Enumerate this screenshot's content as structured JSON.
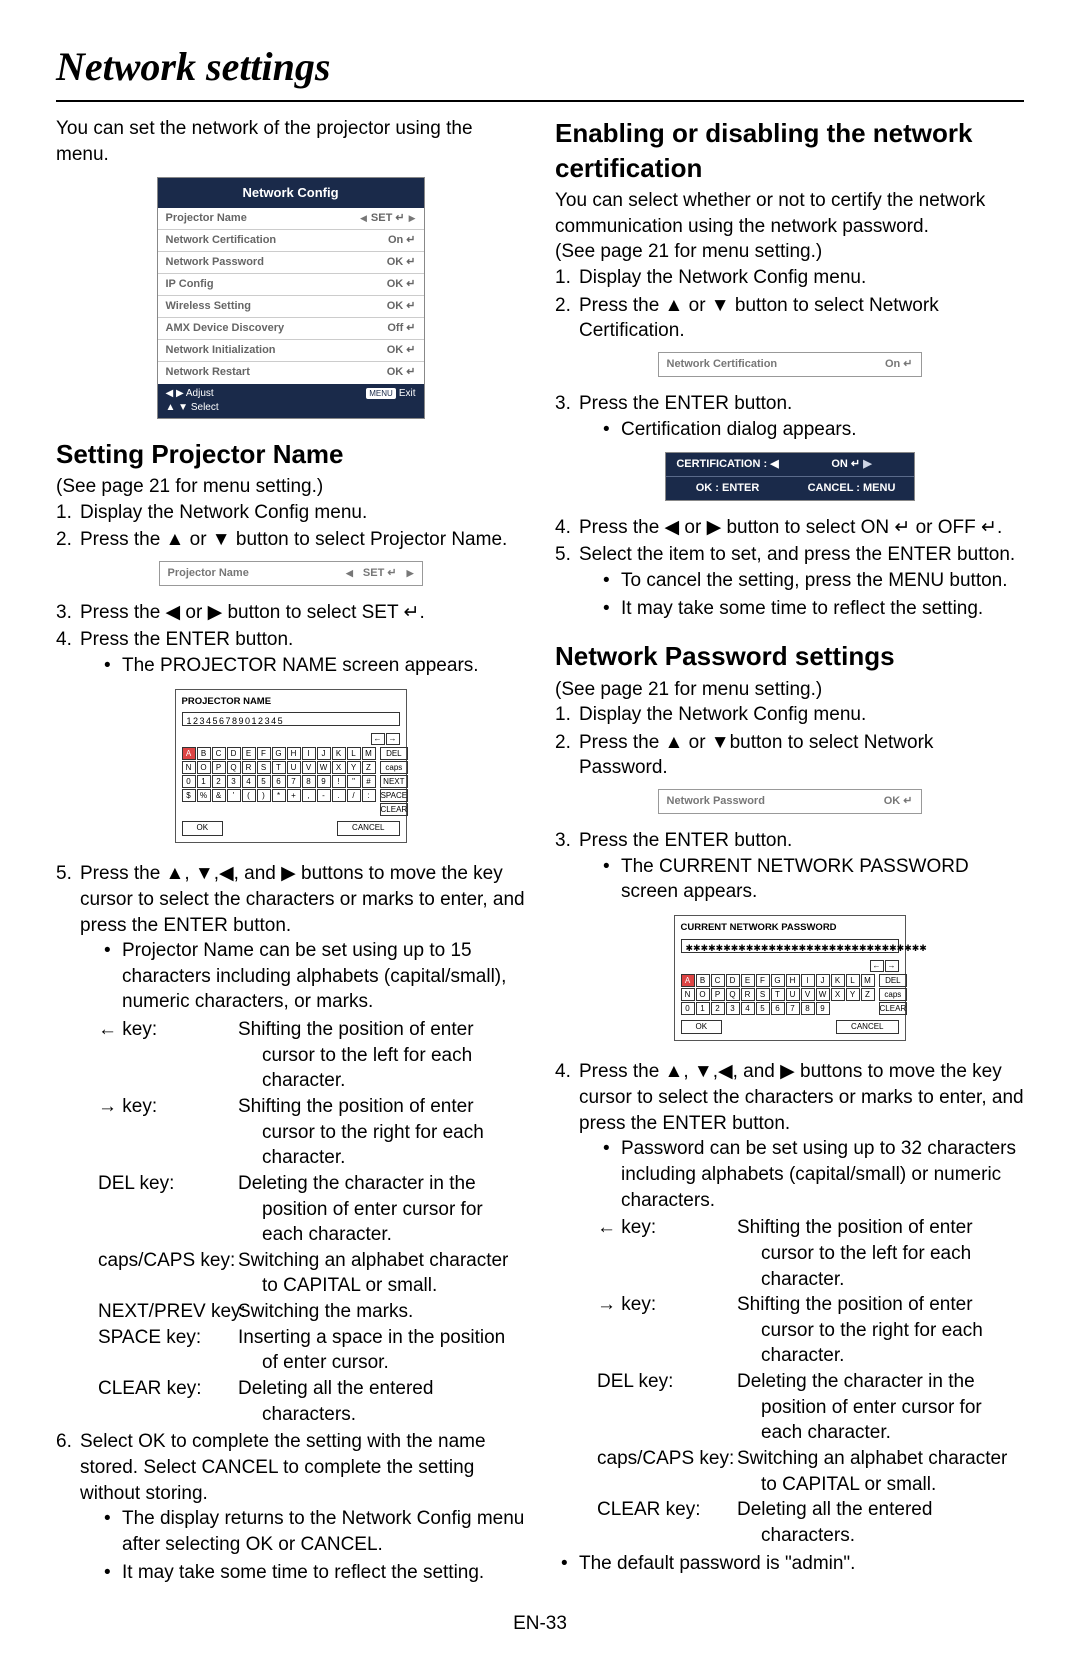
{
  "page_title": "Network settings",
  "page_number": "EN-33",
  "intro": "You can set the network of the projector using the menu.",
  "nc_panel": {
    "header": "Network Config",
    "rows": [
      {
        "label": "Projector Name",
        "value": "SET ↵",
        "has_arrows": true
      },
      {
        "label": "Network Certification",
        "value": "On ↵"
      },
      {
        "label": "Network Password",
        "value": "OK ↵"
      },
      {
        "label": "IP Config",
        "value": "OK ↵"
      },
      {
        "label": "Wireless Setting",
        "value": "OK ↵"
      },
      {
        "label": "AMX Device Discovery",
        "value": "Off ↵"
      },
      {
        "label": "Network Initialization",
        "value": "OK ↵"
      },
      {
        "label": "Network Restart",
        "value": "OK ↵"
      }
    ],
    "footer_left1": "◀ ▶ Adjust",
    "footer_left2": "▲ ▼ Select",
    "footer_right": "Exit",
    "footer_menu": "MENU"
  },
  "left": {
    "h1": "Setting Projector Name",
    "see": "(See page 21 for menu setting.)",
    "s1": "Display the Network Config menu.",
    "s2": "Press the ▲ or ▼ button to select Projector Name.",
    "mini": {
      "label": "Projector Name",
      "value": "SET ↵"
    },
    "s3": "Press the ◀ or ▶ button to select SET ↵.",
    "s4": "Press the ENTER button.",
    "s4b": "The PROJECTOR NAME screen appears.",
    "osk": {
      "title": "PROJECTOR NAME",
      "field": "123456789012345",
      "rows": [
        [
          "A",
          "B",
          "C",
          "D",
          "E",
          "F",
          "G",
          "H",
          "I",
          "J",
          "K",
          "L",
          "M"
        ],
        [
          "N",
          "O",
          "P",
          "Q",
          "R",
          "S",
          "T",
          "U",
          "V",
          "W",
          "X",
          "Y",
          "Z"
        ],
        [
          "0",
          "1",
          "2",
          "3",
          "4",
          "5",
          "6",
          "7",
          "8",
          "9",
          "!",
          "\"",
          "#"
        ],
        [
          "$",
          "%",
          "&",
          "'",
          "(",
          ")",
          "*",
          "+",
          ",",
          "-",
          ".",
          "/",
          ":"
        ]
      ],
      "side": [
        "DEL",
        "caps",
        "NEXT",
        "SPACE",
        "CLEAR"
      ],
      "ok": "OK",
      "cancel": "CANCEL"
    },
    "s5": "Press the ▲, ▼,◀, and ▶ buttons to move the key cursor to select the characters or marks to enter, and press the ENTER button.",
    "s5b": "Projector Name can be set using up to 15 characters including alphabets (capital/small), numeric characters, or marks.",
    "keys": [
      {
        "k": "← key:",
        "d": "Shifting the position of enter cursor to the left for each character."
      },
      {
        "k": "→ key:",
        "d": "Shifting the position of enter cursor to the right for each character."
      },
      {
        "k": "DEL key:",
        "d": "Deleting the character in the position of enter cursor for each character."
      },
      {
        "k": "caps/CAPS key:",
        "d": "Switching an alphabet character to CAPITAL or small."
      },
      {
        "k": "NEXT/PREV key:",
        "d": "Switching the marks."
      },
      {
        "k": "SPACE key:",
        "d": "Inserting a space in the position of enter cursor."
      },
      {
        "k": "CLEAR key:",
        "d": "Deleting all the entered characters."
      }
    ],
    "s6": "Select OK to complete the setting with the name stored. Select CANCEL to complete the setting without storing.",
    "s6b1": "The display returns to the Network Config menu after selecting OK or CANCEL.",
    "s6b2": "It may take some time to reflect the setting."
  },
  "right": {
    "h1": "Enabling or disabling the network certification",
    "p1": "You can select whether or not to certify the network communication using the network password.",
    "see": "(See page 21 for menu setting.)",
    "s1": "Display the Network Config menu.",
    "s2": "Press the ▲ or ▼ button to select Network Certification.",
    "mini1": {
      "label": "Network Certification",
      "value": "On ↵"
    },
    "s3": "Press the ENTER button.",
    "s3b": "Certification dialog appears.",
    "cert": {
      "r1a": "CERTIFICATION : ◀",
      "r1b": "ON ↵",
      "r2a": "OK : ENTER",
      "r2b": "CANCEL : MENU"
    },
    "s4": "Press the ◀ or ▶ button to select ON ↵ or OFF ↵.",
    "s5": "Select the item to set, and press the ENTER button.",
    "s5b1": "To cancel the setting, press the MENU button.",
    "s5b2": "It may take some time to reflect the setting.",
    "h2": "Network Password settings",
    "see2": "(See page 21 for menu setting.)",
    "p_s1": "Display the Network Config menu.",
    "p_s2": "Press the ▲ or ▼button to select Network Password.",
    "mini2": {
      "label": "Network Password",
      "value": "OK ↵"
    },
    "p_s3": "Press the ENTER button.",
    "p_s3b": "The CURRENT NETWORK PASSWORD screen appears.",
    "osk": {
      "title": "CURRENT NETWORK PASSWORD",
      "field": "✱✱✱✱✱✱✱✱✱✱✱✱✱✱✱✱✱✱✱✱✱✱✱✱✱✱✱✱✱✱✱✱",
      "rows": [
        [
          "A",
          "B",
          "C",
          "D",
          "E",
          "F",
          "G",
          "H",
          "I",
          "J",
          "K",
          "L",
          "M"
        ],
        [
          "N",
          "O",
          "P",
          "Q",
          "R",
          "S",
          "T",
          "U",
          "V",
          "W",
          "X",
          "Y",
          "Z"
        ],
        [
          "0",
          "1",
          "2",
          "3",
          "4",
          "5",
          "6",
          "7",
          "8",
          "9"
        ]
      ],
      "side": [
        "DEL",
        "caps",
        "CLEAR"
      ],
      "ok": "OK",
      "cancel": "CANCEL"
    },
    "p_s4": "Press the ▲, ▼,◀, and ▶ buttons to move the key cursor to select the characters or marks to enter, and press the ENTER button.",
    "p_s4b": "Password can be set using up to 32 characters including alphabets (capital/small) or numeric characters.",
    "keys": [
      {
        "k": "← key:",
        "d": "Shifting the position of enter cursor to the left for each character."
      },
      {
        "k": "→ key:",
        "d": "Shifting the position of enter cursor to the right for each character."
      },
      {
        "k": "DEL key:",
        "d": "Deleting the character in the position of enter cursor for each character."
      },
      {
        "k": "caps/CAPS key:",
        "d": "Switching an alphabet character to CAPITAL or small."
      },
      {
        "k": "CLEAR key:",
        "d": "Deleting all the entered characters."
      }
    ],
    "p_last": "The default password is \"admin\"."
  }
}
